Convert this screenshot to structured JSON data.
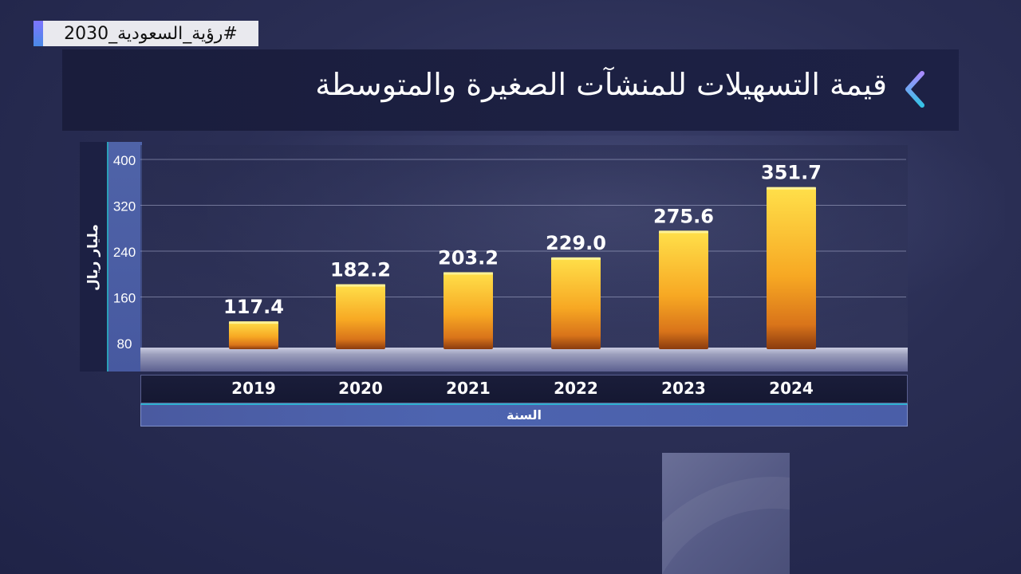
{
  "hashtag": "#رؤية_السعودية_2030",
  "title": "قيمة التسهيلات للمنشآت الصغيرة والمتوسطة",
  "colors": {
    "bar_top": "#ffe04a",
    "bar_mid": "#f7a823",
    "bar_bottom": "#8a3b0e",
    "accent": "#2fb0d0"
  },
  "chart_data": {
    "type": "bar",
    "categories": [
      "2019",
      "2020",
      "2021",
      "2022",
      "2023",
      "2024"
    ],
    "values": [
      117.4,
      182.2,
      203.2,
      229.0,
      275.6,
      351.7
    ],
    "data_labels": [
      "117.4",
      "182.2",
      "203.2",
      "229.0",
      "275.6",
      "351.7"
    ],
    "yticks": [
      80,
      160,
      240,
      320,
      400
    ],
    "ylim": [
      80,
      400
    ],
    "ylabel": "مليار ريال",
    "xlabel": "السنة",
    "grid": true
  }
}
